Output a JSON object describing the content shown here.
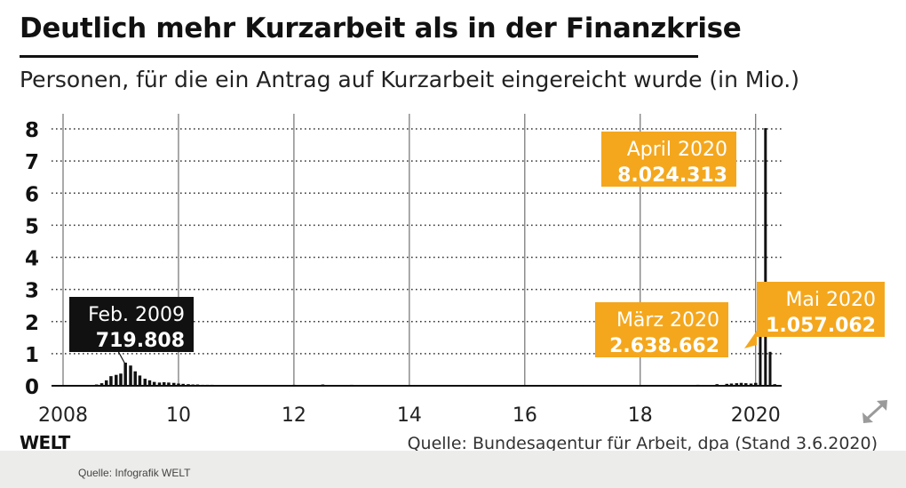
{
  "header": {
    "title": "Deutlich mehr Kurzarbeit als in der Finanzkrise",
    "subtitle": "Personen, für die ein Antrag auf Kurzarbeit eingereicht wurde (in Mio.)"
  },
  "colors": {
    "callout_black": "#111111",
    "callout_orange": "#f4a71d",
    "bar": "#111111",
    "grid": "#333333"
  },
  "chart_data": {
    "type": "bar",
    "title": "Deutlich mehr Kurzarbeit als in der Finanzkrise",
    "subtitle": "Personen, für die ein Antrag auf Kurzarbeit eingereicht wurde (in Mio.)",
    "xlabel": "",
    "ylabel": "",
    "xlim": [
      2007.8,
      2020.45
    ],
    "ylim": [
      0,
      8
    ],
    "yticks": [
      "0",
      "1",
      "2",
      "3",
      "4",
      "5",
      "6",
      "7",
      "8"
    ],
    "xticks": [
      {
        "value": 2008,
        "label": "2008"
      },
      {
        "value": 2010,
        "label": "10"
      },
      {
        "value": 2012,
        "label": "12"
      },
      {
        "value": 2014,
        "label": "14"
      },
      {
        "value": 2016,
        "label": "16"
      },
      {
        "value": 2018,
        "label": "18"
      },
      {
        "value": 2020,
        "label": "2020"
      }
    ],
    "grid": true,
    "series": [
      {
        "x": [
          2008.5,
          2008.58,
          2008.67,
          2008.75,
          2008.83,
          2008.92,
          2009.0,
          2009.08,
          2009.17,
          2009.25,
          2009.33,
          2009.42,
          2009.5,
          2009.58,
          2009.67,
          2009.75,
          2009.83,
          2009.92,
          2010.0,
          2010.08,
          2010.17,
          2010.25,
          2010.33,
          2010.42,
          2010.5,
          2010.58,
          2010.67,
          2010.75,
          2010.83,
          2010.92,
          2011.0,
          2011.5,
          2012.0,
          2012.5,
          2013.0,
          2013.5,
          2014.0,
          2014.5,
          2015.0,
          2015.5,
          2016.0,
          2016.5,
          2017.0,
          2017.5,
          2018.0,
          2018.5,
          2019.0,
          2019.33,
          2019.5,
          2019.58,
          2019.67,
          2019.75,
          2019.83,
          2019.92,
          2020.0,
          2020.08,
          2020.17,
          2020.25,
          2020.33
        ],
        "values": [
          0.02,
          0.04,
          0.08,
          0.17,
          0.3,
          0.34,
          0.38,
          0.72,
          0.63,
          0.45,
          0.32,
          0.22,
          0.17,
          0.12,
          0.1,
          0.11,
          0.1,
          0.09,
          0.07,
          0.06,
          0.05,
          0.04,
          0.04,
          0.03,
          0.03,
          0.03,
          0.02,
          0.02,
          0.02,
          0.02,
          0.02,
          0.02,
          0.03,
          0.04,
          0.03,
          0.02,
          0.02,
          0.02,
          0.01,
          0.02,
          0.02,
          0.01,
          0.01,
          0.01,
          0.01,
          0.01,
          0.03,
          0.05,
          0.06,
          0.07,
          0.08,
          0.09,
          0.08,
          0.07,
          0.09,
          2.638662,
          8.024313,
          1.057062,
          0.05
        ]
      }
    ],
    "annotations": [
      {
        "label": "Feb. 2009",
        "value": "719.808",
        "style": "black"
      },
      {
        "label": "April 2020",
        "value": "8.024.313",
        "style": "orange"
      },
      {
        "label": "März 2020",
        "value": "2.638.662",
        "style": "orange"
      },
      {
        "label": "Mai 2020",
        "value": "1.057.062",
        "style": "orange"
      }
    ]
  },
  "footer": {
    "brand": "WELT",
    "source": "Quelle: Bundesagentur für Arbeit, dpa (Stand 3.6.2020)",
    "credit": "Quelle: Infografik WELT"
  },
  "controls": {
    "expand_icon": "expand-icon"
  }
}
